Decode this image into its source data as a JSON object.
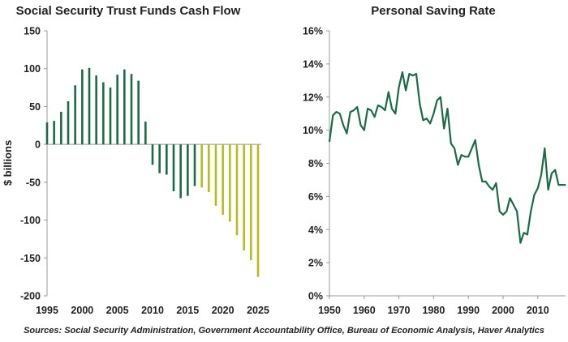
{
  "chart_data": [
    {
      "type": "bar",
      "title": "Social Security Trust Funds Cash Flow",
      "ylabel": "$ billions",
      "xlabel": "",
      "ylim": [
        -200,
        150
      ],
      "yticks": [
        "150",
        "100",
        "50",
        "0",
        "-50",
        "-100",
        "-150",
        "-200"
      ],
      "ytick_values": [
        150,
        100,
        50,
        0,
        -50,
        -100,
        -150,
        -200
      ],
      "xlim": [
        1995,
        2025
      ],
      "xticks": [
        "1995",
        "2000",
        "2005",
        "2010",
        "2015",
        "2020",
        "2025"
      ],
      "xtick_values": [
        1995,
        2000,
        2005,
        2010,
        2015,
        2020,
        2025
      ],
      "grid": false,
      "series": [
        {
          "color": "#1b6b46",
          "x": [
            1995,
            1996,
            1997,
            1998,
            1999,
            2000,
            2001,
            2002,
            2003,
            2004,
            2005,
            2006,
            2007,
            2008,
            2009,
            2010,
            2011,
            2012,
            2013,
            2014,
            2015,
            2016
          ],
          "values": [
            29,
            31,
            43,
            57,
            78,
            99,
            101,
            91,
            82,
            75,
            92,
            99,
            93,
            84,
            30,
            -27,
            -38,
            -40,
            -62,
            -71,
            -68,
            -55
          ]
        },
        {
          "color": "#b7bb1e",
          "x": [
            2017,
            2018,
            2019,
            2020,
            2021,
            2022,
            2023,
            2024,
            2025
          ],
          "values": [
            -57,
            -63,
            -81,
            -93,
            -102,
            -120,
            -140,
            -153,
            -175
          ]
        }
      ]
    },
    {
      "type": "line",
      "title": "Personal Saving Rate",
      "ylabel": "",
      "xlabel": "",
      "ylim": [
        0,
        16
      ],
      "yticks": [
        "0%",
        "2%",
        "4%",
        "6%",
        "8%",
        "10%",
        "12%",
        "14%",
        "16%"
      ],
      "ytick_values": [
        0,
        2,
        4,
        6,
        8,
        10,
        12,
        14,
        16
      ],
      "xlim": [
        1950,
        2018
      ],
      "xticks": [
        "1950",
        "1960",
        "1970",
        "1980",
        "1990",
        "2000",
        "2010"
      ],
      "xtick_values": [
        1950,
        1960,
        1970,
        1980,
        1990,
        2000,
        2010
      ],
      "grid": false,
      "series": [
        {
          "color": "#1b6b46",
          "x": [
            1950,
            1951,
            1952,
            1953,
            1954,
            1955,
            1956,
            1957,
            1958,
            1959,
            1960,
            1961,
            1962,
            1963,
            1964,
            1965,
            1966,
            1967,
            1968,
            1969,
            1970,
            1971,
            1972,
            1973,
            1974,
            1975,
            1976,
            1977,
            1978,
            1979,
            1980,
            1981,
            1982,
            1983,
            1984,
            1985,
            1986,
            1987,
            1988,
            1989,
            1990,
            1991,
            1992,
            1993,
            1994,
            1995,
            1996,
            1997,
            1998,
            1999,
            2000,
            2001,
            2002,
            2003,
            2004,
            2005,
            2006,
            2007,
            2008,
            2009,
            2010,
            2011,
            2012,
            2013,
            2014,
            2015,
            2016,
            2017,
            2018
          ],
          "values": [
            9.3,
            10.9,
            11.1,
            11.0,
            10.3,
            9.8,
            11.1,
            11.2,
            11.4,
            10.3,
            10.0,
            11.3,
            11.2,
            10.8,
            11.5,
            11.4,
            11.2,
            12.3,
            11.3,
            11.0,
            12.6,
            13.5,
            12.4,
            13.4,
            13.3,
            13.4,
            11.6,
            10.6,
            10.7,
            10.4,
            11.0,
            11.8,
            12.0,
            10.1,
            11.3,
            9.2,
            8.9,
            7.9,
            8.5,
            8.4,
            8.4,
            8.9,
            9.4,
            7.9,
            6.9,
            6.9,
            6.6,
            6.4,
            6.8,
            5.1,
            4.9,
            5.1,
            5.9,
            5.5,
            5.1,
            3.2,
            3.8,
            3.7,
            5.1,
            6.1,
            6.5,
            7.3,
            8.9,
            6.4,
            7.4,
            7.6,
            6.7,
            6.7,
            6.7
          ]
        }
      ]
    }
  ],
  "footer": {
    "sources": "Sources: Social Security Administration, Government Accountability Office, Bureau of Economic Analysis, Haver Analytics"
  }
}
